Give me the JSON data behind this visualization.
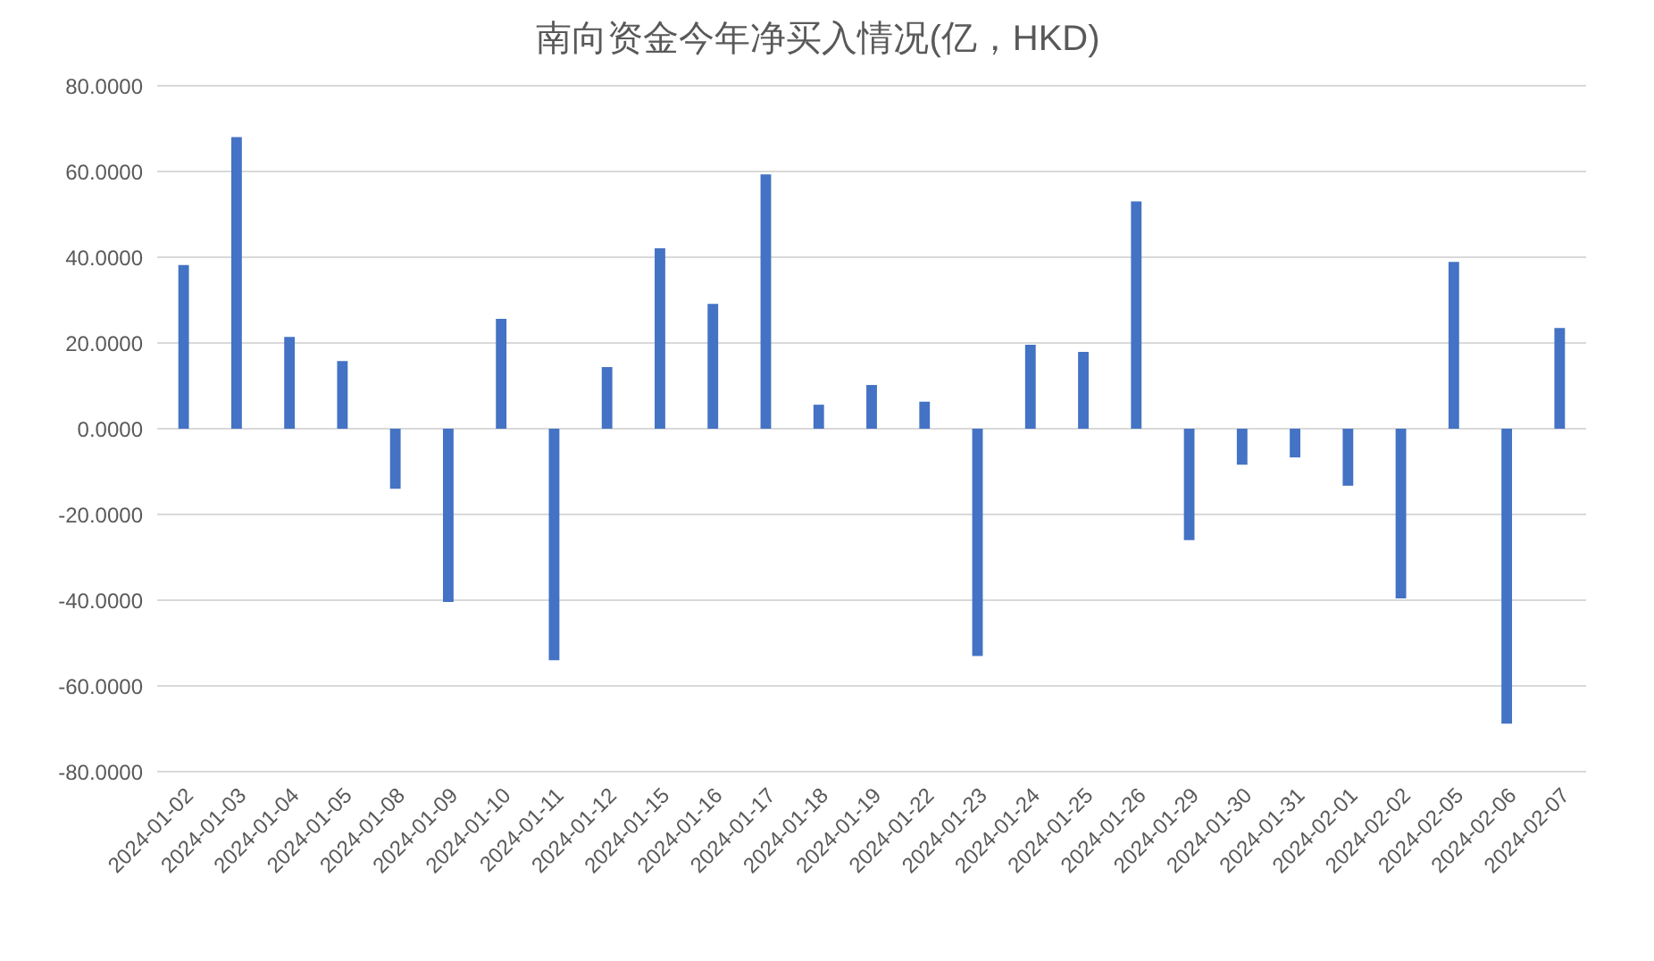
{
  "chart_data": {
    "type": "bar",
    "title": "南向资金今年净买入情况(亿，HKD)",
    "categories": [
      "2024-01-02",
      "2024-01-03",
      "2024-01-04",
      "2024-01-05",
      "2024-01-08",
      "2024-01-09",
      "2024-01-10",
      "2024-01-11",
      "2024-01-12",
      "2024-01-15",
      "2024-01-16",
      "2024-01-17",
      "2024-01-18",
      "2024-01-19",
      "2024-01-22",
      "2024-01-23",
      "2024-01-24",
      "2024-01-25",
      "2024-01-26",
      "2024-01-29",
      "2024-01-30",
      "2024-01-31",
      "2024-02-01",
      "2024-02-02",
      "2024-02-05",
      "2024-02-06",
      "2024-02-07"
    ],
    "values": [
      38.2,
      68,
      21.4,
      15.8,
      -14,
      -40.4,
      25.6,
      -54,
      14.4,
      42.1,
      29.1,
      59.3,
      5.6,
      10.2,
      6.3,
      -53,
      19.6,
      17.9,
      53,
      -26,
      -8.4,
      -6.7,
      -13.3,
      -39.6,
      38.9,
      -68.8,
      23.5
    ],
    "color": "#4472c4",
    "ylim": [
      -80,
      80
    ],
    "yticks": [
      {
        "value": -80,
        "label": "-80.0000"
      },
      {
        "value": -60,
        "label": "-60.0000"
      },
      {
        "value": -40,
        "label": "-40.0000"
      },
      {
        "value": -20,
        "label": "-20.0000"
      },
      {
        "value": 0,
        "label": "0.0000"
      },
      {
        "value": 20,
        "label": "20.0000"
      },
      {
        "value": 40,
        "label": "40.0000"
      },
      {
        "value": 60,
        "label": "60.0000"
      },
      {
        "value": 80,
        "label": "80.0000"
      }
    ],
    "grid": "y",
    "legend": false
  }
}
